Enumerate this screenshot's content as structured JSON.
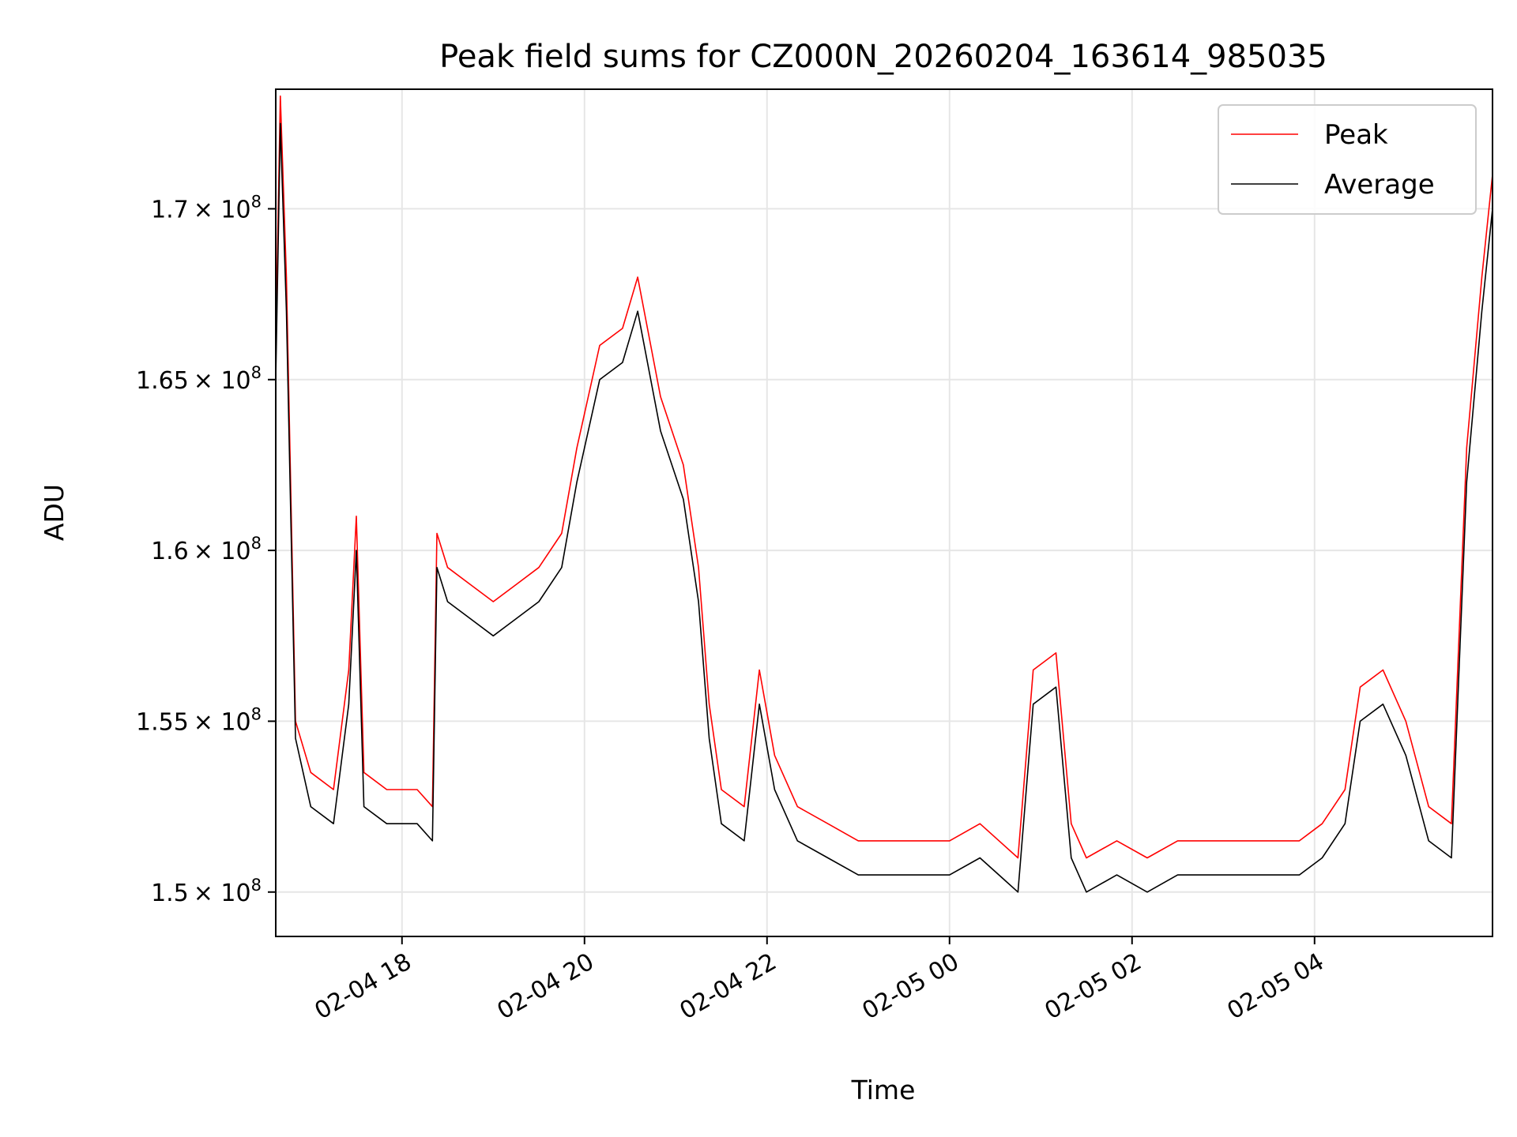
{
  "chart_data": {
    "type": "line",
    "title": "Peak field sums for CZ000N_20260204_163614_985035",
    "xlabel": "Time",
    "ylabel": "ADU",
    "x_range": [
      "2026-02-04 16:37",
      "2026-02-05 05:57"
    ],
    "ylim": [
      148700000,
      173500000
    ],
    "grid": true,
    "legend_position": "top-right",
    "x_ticks": [
      {
        "value": "2026-02-04 18:00",
        "label": "02-04 18"
      },
      {
        "value": "2026-02-04 20:00",
        "label": "02-04 20"
      },
      {
        "value": "2026-02-04 22:00",
        "label": "02-04 22"
      },
      {
        "value": "2026-02-05 00:00",
        "label": "02-05 00"
      },
      {
        "value": "2026-02-05 02:00",
        "label": "02-05 02"
      },
      {
        "value": "2026-02-05 04:00",
        "label": "02-05 04"
      }
    ],
    "y_ticks": [
      {
        "value": 150000000,
        "mantissa": "1.5"
      },
      {
        "value": 155000000,
        "mantissa": "1.55"
      },
      {
        "value": 160000000,
        "mantissa": "1.6"
      },
      {
        "value": 165000000,
        "mantissa": "1.65"
      },
      {
        "value": 170000000,
        "mantissa": "1.7"
      }
    ],
    "y_tick_suffix": "× 10",
    "y_tick_exponent": "8",
    "series": [
      {
        "name": "Peak",
        "color": "#ff0000",
        "x": [
          "2026-02-04 16:37",
          "2026-02-04 16:40",
          "2026-02-04 16:44",
          "2026-02-04 16:50",
          "2026-02-04 17:00",
          "2026-02-04 17:15",
          "2026-02-04 17:25",
          "2026-02-04 17:30",
          "2026-02-04 17:35",
          "2026-02-04 17:50",
          "2026-02-04 18:10",
          "2026-02-04 18:20",
          "2026-02-04 18:23",
          "2026-02-04 18:30",
          "2026-02-04 18:45",
          "2026-02-04 19:00",
          "2026-02-04 19:15",
          "2026-02-04 19:30",
          "2026-02-04 19:45",
          "2026-02-04 19:55",
          "2026-02-04 20:10",
          "2026-02-04 20:25",
          "2026-02-04 20:35",
          "2026-02-04 20:50",
          "2026-02-04 21:05",
          "2026-02-04 21:15",
          "2026-02-04 21:22",
          "2026-02-04 21:30",
          "2026-02-04 21:45",
          "2026-02-04 21:55",
          "2026-02-04 22:05",
          "2026-02-04 22:20",
          "2026-02-04 22:40",
          "2026-02-04 23:00",
          "2026-02-04 23:20",
          "2026-02-04 23:40",
          "2026-02-05 00:00",
          "2026-02-05 00:20",
          "2026-02-05 00:45",
          "2026-02-05 00:55",
          "2026-02-05 01:10",
          "2026-02-05 01:20",
          "2026-02-05 01:30",
          "2026-02-05 01:50",
          "2026-02-05 02:10",
          "2026-02-05 02:30",
          "2026-02-05 02:50",
          "2026-02-05 03:10",
          "2026-02-05 03:30",
          "2026-02-05 03:50",
          "2026-02-05 04:05",
          "2026-02-05 04:20",
          "2026-02-05 04:30",
          "2026-02-05 04:45",
          "2026-02-05 05:00",
          "2026-02-05 05:15",
          "2026-02-05 05:30",
          "2026-02-05 05:40",
          "2026-02-05 05:50",
          "2026-02-05 05:57"
        ],
        "values": [
          166000000,
          173300000,
          168000000,
          155000000,
          153500000,
          153000000,
          156500000,
          161000000,
          153500000,
          153000000,
          153000000,
          152500000,
          160500000,
          159500000,
          159000000,
          158500000,
          159000000,
          159500000,
          160500000,
          163000000,
          166000000,
          166500000,
          168000000,
          164500000,
          162500000,
          159500000,
          155500000,
          153000000,
          152500000,
          156500000,
          154000000,
          152500000,
          152000000,
          151500000,
          151500000,
          151500000,
          151500000,
          152000000,
          151000000,
          156500000,
          157000000,
          152000000,
          151000000,
          151500000,
          151000000,
          151500000,
          151500000,
          151500000,
          151500000,
          151500000,
          152000000,
          153000000,
          156000000,
          156500000,
          155000000,
          152500000,
          152000000,
          163000000,
          168000000,
          171000000
        ]
      },
      {
        "name": "Average",
        "color": "#000000",
        "x": [
          "2026-02-04 16:37",
          "2026-02-04 16:40",
          "2026-02-04 16:44",
          "2026-02-04 16:50",
          "2026-02-04 17:00",
          "2026-02-04 17:15",
          "2026-02-04 17:25",
          "2026-02-04 17:30",
          "2026-02-04 17:35",
          "2026-02-04 17:50",
          "2026-02-04 18:10",
          "2026-02-04 18:20",
          "2026-02-04 18:23",
          "2026-02-04 18:30",
          "2026-02-04 18:45",
          "2026-02-04 19:00",
          "2026-02-04 19:15",
          "2026-02-04 19:30",
          "2026-02-04 19:45",
          "2026-02-04 19:55",
          "2026-02-04 20:10",
          "2026-02-04 20:25",
          "2026-02-04 20:35",
          "2026-02-04 20:50",
          "2026-02-04 21:05",
          "2026-02-04 21:15",
          "2026-02-04 21:22",
          "2026-02-04 21:30",
          "2026-02-04 21:45",
          "2026-02-04 21:55",
          "2026-02-04 22:05",
          "2026-02-04 22:20",
          "2026-02-04 22:40",
          "2026-02-04 23:00",
          "2026-02-04 23:20",
          "2026-02-04 23:40",
          "2026-02-05 00:00",
          "2026-02-05 00:20",
          "2026-02-05 00:45",
          "2026-02-05 00:55",
          "2026-02-05 01:10",
          "2026-02-05 01:20",
          "2026-02-05 01:30",
          "2026-02-05 01:50",
          "2026-02-05 02:10",
          "2026-02-05 02:30",
          "2026-02-05 02:50",
          "2026-02-05 03:10",
          "2026-02-05 03:30",
          "2026-02-05 03:50",
          "2026-02-05 04:05",
          "2026-02-05 04:20",
          "2026-02-05 04:30",
          "2026-02-05 04:45",
          "2026-02-05 05:00",
          "2026-02-05 05:15",
          "2026-02-05 05:30",
          "2026-02-05 05:40",
          "2026-02-05 05:50",
          "2026-02-05 05:57"
        ],
        "values": [
          165000000,
          172500000,
          167000000,
          154500000,
          152500000,
          152000000,
          155500000,
          160000000,
          152500000,
          152000000,
          152000000,
          151500000,
          159500000,
          158500000,
          158000000,
          157500000,
          158000000,
          158500000,
          159500000,
          162000000,
          165000000,
          165500000,
          167000000,
          163500000,
          161500000,
          158500000,
          154500000,
          152000000,
          151500000,
          155500000,
          153000000,
          151500000,
          151000000,
          150500000,
          150500000,
          150500000,
          150500000,
          151000000,
          150000000,
          155500000,
          156000000,
          151000000,
          150000000,
          150500000,
          150000000,
          150500000,
          150500000,
          150500000,
          150500000,
          150500000,
          151000000,
          152000000,
          155000000,
          155500000,
          154000000,
          151500000,
          151000000,
          162000000,
          167000000,
          170000000
        ]
      }
    ]
  }
}
